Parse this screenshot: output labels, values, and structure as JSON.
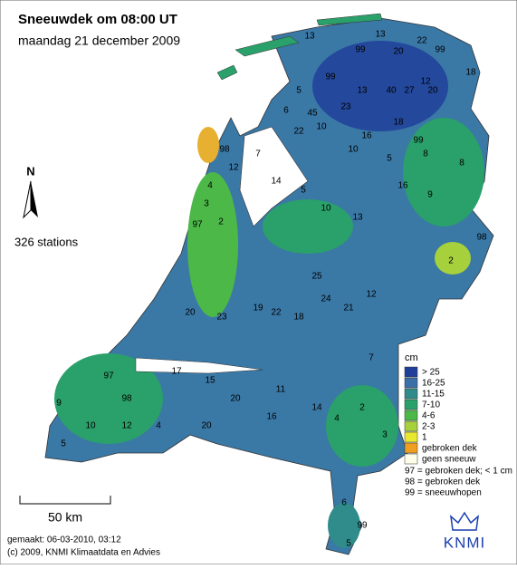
{
  "header": {
    "title": "Sneeuwdek om 08:00 UT",
    "subtitle": "maandag 21 december 2009"
  },
  "north": "N",
  "stations_count": "326 stations",
  "scale": "50 km",
  "footer": {
    "made": "gemaakt: 06-03-2010, 03:12",
    "copyright": "(c) 2009, KNMI Klimaatdata en Advies"
  },
  "legend": {
    "unit": "cm",
    "items": [
      {
        "label": "> 25",
        "color": "#1f3f9a"
      },
      {
        "label": "16-25",
        "color": "#3a6fa8"
      },
      {
        "label": "11-15",
        "color": "#2f8c8a"
      },
      {
        "label": "7-10",
        "color": "#2aa06a"
      },
      {
        "label": "4-6",
        "color": "#4cb848"
      },
      {
        "label": "2-3",
        "color": "#a6d03c"
      },
      {
        "label": "1",
        "color": "#e8e830"
      },
      {
        "label": "gebroken dek",
        "color": "#f0a020"
      },
      {
        "label": "geen sneeuw",
        "color": "#fdfde8"
      }
    ]
  },
  "legend_notes": [
    "97 = gebroken dek; < 1 cm",
    "98 = gebroken dek",
    "99 = sneeuwhopen"
  ],
  "logo": "KNMI",
  "stations": [
    "13",
    "22",
    "99",
    "99",
    "13",
    "6",
    "20",
    "12",
    "18",
    "99",
    "5",
    "13",
    "40",
    "27",
    "20",
    "45",
    "23",
    "10",
    "22",
    "16",
    "18",
    "10",
    "5",
    "8",
    "99",
    "12",
    "7",
    "14",
    "4",
    "3",
    "97",
    "2",
    "98",
    "5",
    "10",
    "13",
    "16",
    "9",
    "8",
    "98",
    "2",
    "19",
    "23",
    "20",
    "22",
    "24",
    "25",
    "18",
    "21",
    "12",
    "15",
    "17",
    "11",
    "20",
    "14",
    "4",
    "9",
    "97",
    "98",
    "4",
    "10",
    "5",
    "12",
    "20",
    "16",
    "2",
    "3",
    "7",
    "6",
    "99",
    "5"
  ]
}
